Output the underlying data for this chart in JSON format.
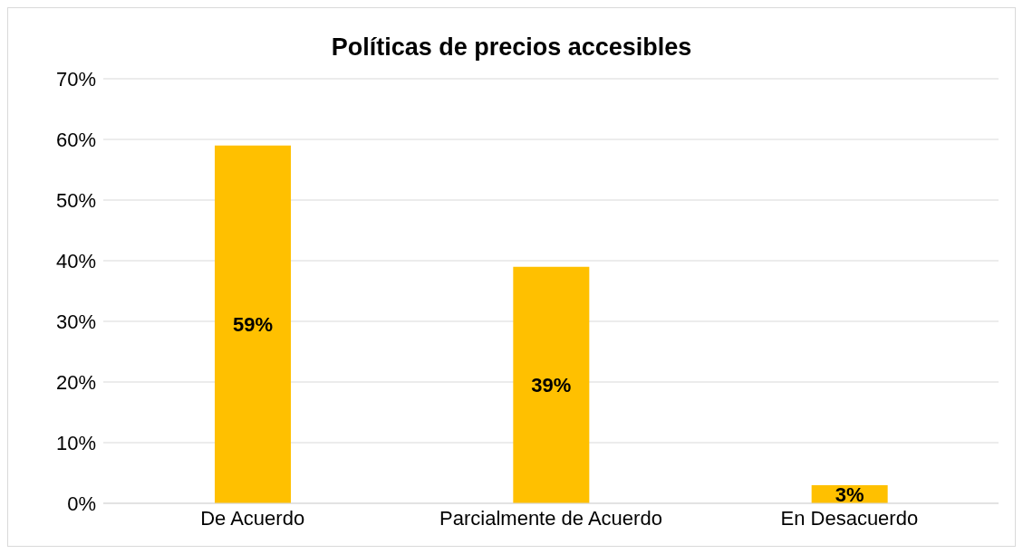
{
  "chart_data": {
    "type": "bar",
    "title": "Políticas de precios accesibles",
    "categories": [
      "De Acuerdo",
      "Parcialmente de Acuerdo",
      "En Desacuerdo"
    ],
    "values": [
      59,
      39,
      3
    ],
    "value_labels": [
      "59%",
      "39%",
      "3%"
    ],
    "color": "#ffc000",
    "ylim": [
      0,
      70
    ],
    "yticks": [
      {
        "value": 0,
        "label": "0%"
      },
      {
        "value": 10,
        "label": "10%"
      },
      {
        "value": 20,
        "label": "20%"
      },
      {
        "value": 30,
        "label": "30%"
      },
      {
        "value": 40,
        "label": "40%"
      },
      {
        "value": 50,
        "label": "50%"
      },
      {
        "value": 60,
        "label": "60%"
      },
      {
        "value": 70,
        "label": "70%"
      }
    ],
    "grid": "y",
    "legend": false
  }
}
